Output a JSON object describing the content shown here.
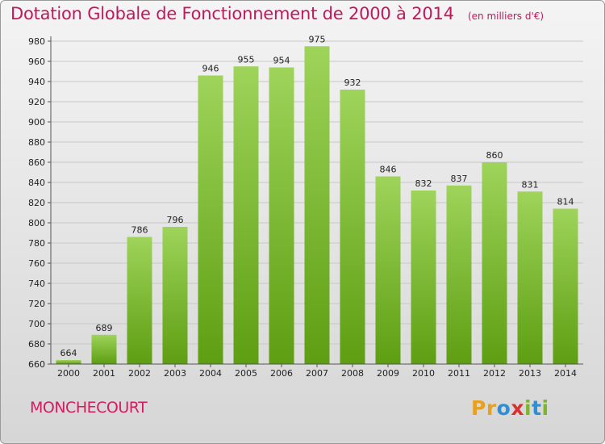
{
  "chart_data": {
    "type": "bar",
    "title": "Dotation Globale de Fonctionnement de 2000 à 2014",
    "subtitle": "(en milliers d'€)",
    "categories": [
      "2000",
      "2001",
      "2002",
      "2003",
      "2004",
      "2005",
      "2006",
      "2007",
      "2008",
      "2009",
      "2010",
      "2011",
      "2012",
      "2013",
      "2014"
    ],
    "values": [
      664,
      689,
      786,
      796,
      946,
      955,
      954,
      975,
      932,
      846,
      832,
      837,
      860,
      831,
      814
    ],
    "ylim": [
      660,
      980
    ],
    "yticks": [
      660,
      680,
      700,
      720,
      740,
      760,
      780,
      800,
      820,
      840,
      860,
      880,
      900,
      920,
      940,
      960,
      980
    ],
    "xlabel": "",
    "ylabel": "",
    "grid": true,
    "colors": {
      "bar_top": "#9ed45a",
      "bar_bottom": "#5e9e12",
      "title": "#c2185b",
      "grid": "#c8c8c8"
    }
  },
  "footer": {
    "commune": "MONCHECOURT",
    "logo_text": "Proxiti",
    "logo_colors": [
      "#e8a020",
      "#e8a020",
      "#2d8fd6",
      "#d93030",
      "#7cb62a",
      "#2d8fd6",
      "#7cb62a"
    ]
  }
}
